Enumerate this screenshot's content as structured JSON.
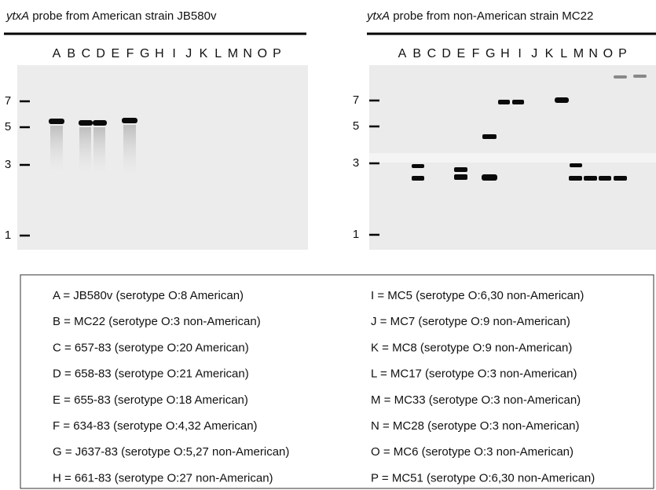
{
  "panels": [
    {
      "title_italic": "ytxA",
      "title_text": "probe from American strain JB580v",
      "lanes": [
        "A",
        "B",
        "C",
        "D",
        "E",
        "F",
        "G",
        "H",
        "I",
        "J",
        "K",
        "L",
        "M",
        "N",
        "O",
        "P"
      ],
      "markers": [
        7,
        5,
        3,
        1
      ]
    },
    {
      "title_italic": "ytxA",
      "title_text": "probe from non-American strain MC22",
      "lanes": [
        "A",
        "B",
        "C",
        "D",
        "E",
        "F",
        "G",
        "H",
        "I",
        "J",
        "K",
        "L",
        "M",
        "N",
        "O",
        "P"
      ],
      "markers": [
        7,
        5,
        3,
        1
      ]
    }
  ],
  "legend": [
    "A = JB580v (serotype O:8 American)",
    "B = MC22 (serotype O:3 non-American)",
    "C = 657-83 (serotype O:20 American)",
    "D = 658-83 (serotype O:21 American)",
    "E = 655-83 (serotype O:18 American)",
    "F = 634-83 (serotype O:4,32 American)",
    "G = J637-83 (serotype O:5,27 non-American)",
    "H = 661-83 (serotype O:27 non-American)",
    "I = MC5 (serotype O:6,30 non-American)",
    "J = MC7 (serotype O:9 non-American)",
    "K = MC8 (serotype O:9 non-American)",
    "L = MC17 (serotype O:3 non-American)",
    "M = MC33 (serotype O:3 non-American)",
    "N = MC28 (serotype O:3 non-American)",
    "O = MC6 (serotype O:3 non-American)",
    "P = MC51 (serotype O:6,30 non-American)"
  ]
}
